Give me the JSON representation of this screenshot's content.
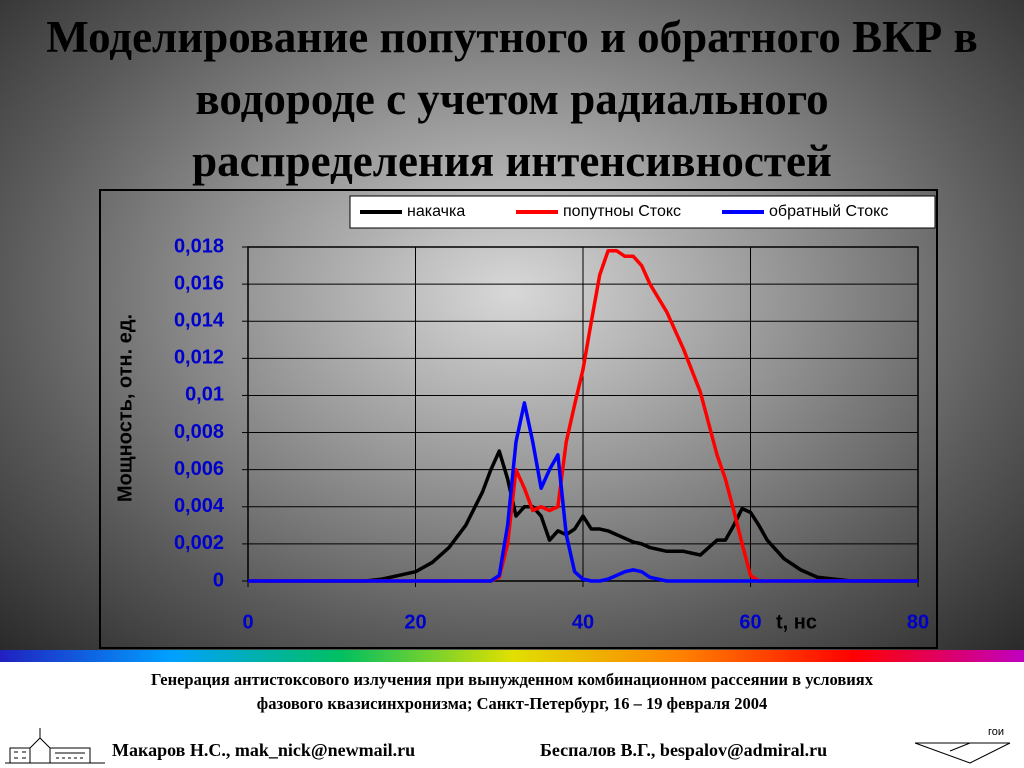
{
  "chart_data": {
    "type": "line",
    "title": "Моделирование попутного и обратного ВКР в водороде с учетом радиального распределения интенсивностей",
    "x_label": "t, нс",
    "y_label": "Мощность, отн. ед.",
    "x": [
      0,
      10,
      14,
      16,
      18,
      20,
      22,
      24,
      26,
      28,
      29,
      30,
      31,
      32,
      33,
      34,
      35,
      36,
      37,
      38,
      39,
      40,
      41,
      42,
      43,
      44,
      45,
      46,
      47,
      48,
      50,
      52,
      54,
      56,
      57,
      58,
      59,
      60,
      61,
      62,
      64,
      66,
      68,
      70,
      72,
      80
    ],
    "series": [
      {
        "name": "накачка",
        "color": "#000000",
        "values": [
          0,
          0,
          0,
          0.0001,
          0.0003,
          0.0005,
          0.001,
          0.0018,
          0.003,
          0.0048,
          0.006,
          0.007,
          0.0055,
          0.0035,
          0.004,
          0.004,
          0.0035,
          0.0022,
          0.0027,
          0.0025,
          0.0028,
          0.0035,
          0.0028,
          0.0028,
          0.0027,
          0.0025,
          0.0023,
          0.0021,
          0.002,
          0.0018,
          0.0016,
          0.0016,
          0.0014,
          0.0022,
          0.0022,
          0.003,
          0.0039,
          0.0037,
          0.003,
          0.0022,
          0.0012,
          0.0006,
          0.0002,
          0.0001,
          0,
          0
        ]
      },
      {
        "name": "попутноы Стокс",
        "color": "#ff0000",
        "values": [
          0,
          0,
          0,
          0,
          0,
          0,
          0,
          0,
          0,
          0,
          0,
          0.0002,
          0.002,
          0.006,
          0.005,
          0.0038,
          0.004,
          0.0038,
          0.004,
          0.0075,
          0.0095,
          0.0114,
          0.014,
          0.0165,
          0.0178,
          0.0178,
          0.0175,
          0.0175,
          0.017,
          0.016,
          0.0145,
          0.0125,
          0.0102,
          0.0068,
          0.0055,
          0.0038,
          0.002,
          0.0003,
          0,
          0,
          0,
          0,
          0,
          0,
          0,
          0
        ]
      },
      {
        "name": "обратный Стокс",
        "color": "#0000ff",
        "values": [
          0,
          0,
          0,
          0,
          0,
          0,
          0,
          0,
          0,
          0,
          0,
          0.0003,
          0.003,
          0.0075,
          0.0096,
          0.0075,
          0.005,
          0.006,
          0.0068,
          0.0025,
          0.0005,
          0.0001,
          0,
          0,
          0.0001,
          0.0003,
          0.0005,
          0.0006,
          0.0005,
          0.0002,
          0,
          0,
          0,
          0,
          0,
          0,
          0,
          0,
          0,
          0,
          0,
          0,
          0,
          0,
          0,
          0
        ]
      }
    ],
    "xlim": [
      0,
      80
    ],
    "xticks": [
      0,
      20,
      40,
      60,
      80
    ],
    "ylim": [
      0,
      0.018
    ],
    "yticks": [
      0,
      {
        "value": 0.002,
        "label": "0,002"
      },
      {
        "value": 0.004,
        "label": "0,004"
      },
      {
        "value": 0.006,
        "label": "0,006"
      },
      {
        "value": 0.008,
        "label": "0,008"
      },
      {
        "value": 0.01,
        "label": "0,01"
      },
      {
        "value": 0.012,
        "label": "0,012"
      },
      {
        "value": 0.014,
        "label": "0,014"
      },
      {
        "value": 0.016,
        "label": "0,016"
      },
      {
        "value": 0.018,
        "label": "0,018"
      }
    ],
    "grid": true,
    "legend": "top"
  },
  "footer": {
    "conference": [
      "Генерация антистоксового излучения при вынужденном комбинационном рассеянии в условиях",
      "фазового квазисинхронизма; Санкт-Петербург, 16 – 19 февраля  2004"
    ],
    "authors": [
      "Макаров Н.С., mak_nick@newmail.ru",
      "Беспалов В.Г., bespalov@admiral.ru"
    ],
    "logo": "гои"
  }
}
